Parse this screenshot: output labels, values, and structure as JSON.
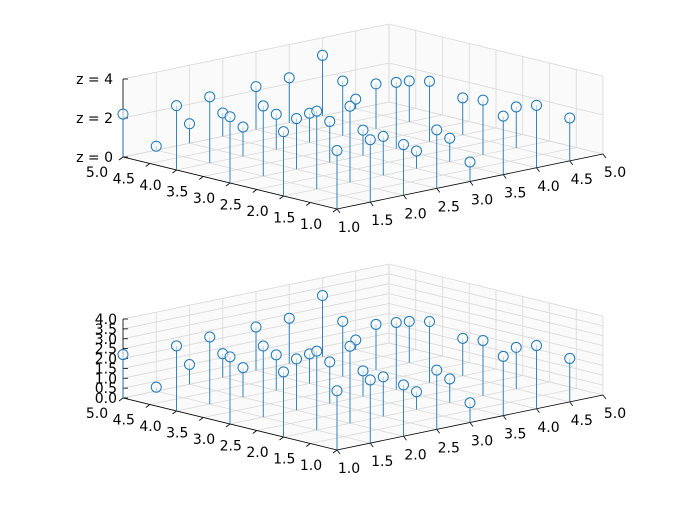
{
  "chart_data": [
    {
      "type": "stem3d",
      "title": "",
      "xlabel": "",
      "ylabel": "",
      "zlabel": "",
      "xlim": [
        1.0,
        5.0
      ],
      "ylim": [
        1.0,
        5.0
      ],
      "zlim": [
        0,
        4
      ],
      "xticks": [
        "1.0",
        "1.5",
        "2.0",
        "2.5",
        "3.0",
        "3.5",
        "4.0",
        "4.5",
        "5.0"
      ],
      "yticks": [
        "1.0",
        "1.5",
        "2.0",
        "2.5",
        "3.0",
        "3.5",
        "4.0",
        "4.5",
        "5.0"
      ],
      "zticks": [
        "z = 0",
        "z = 2",
        "z = 4"
      ],
      "zticks_values": [
        0,
        2,
        4
      ],
      "grid": true,
      "marker": "open-circle",
      "color": "#1f77b4",
      "points": [
        {
          "x": 1.0,
          "y": 5.0,
          "z": 2.2
        },
        {
          "x": 1.0,
          "y": 4.0,
          "z": 3.3
        },
        {
          "x": 1.0,
          "y": 3.0,
          "z": 3.4
        },
        {
          "x": 1.0,
          "y": 2.0,
          "z": 3.3
        },
        {
          "x": 1.0,
          "y": 1.0,
          "z": 3.0
        },
        {
          "x": 1.5,
          "y": 5.0,
          "z": 0.2
        },
        {
          "x": 1.5,
          "y": 4.0,
          "z": 3.4
        },
        {
          "x": 1.5,
          "y": 3.0,
          "z": 3.6
        },
        {
          "x": 1.5,
          "y": 2.0,
          "z": 4.0
        },
        {
          "x": 1.5,
          "y": 1.0,
          "z": 3.2
        },
        {
          "x": 2.0,
          "y": 5.0,
          "z": 1.0
        },
        {
          "x": 2.0,
          "y": 4.0,
          "z": 1.5
        },
        {
          "x": 2.0,
          "y": 3.0,
          "z": 2.6
        },
        {
          "x": 2.0,
          "y": 2.0,
          "z": 3.9
        },
        {
          "x": 2.0,
          "y": 1.0,
          "z": 2.6
        },
        {
          "x": 2.5,
          "y": 5.0,
          "z": 1.2
        },
        {
          "x": 2.5,
          "y": 4.0,
          "z": 1.8
        },
        {
          "x": 2.5,
          "y": 3.0,
          "z": 2.1
        },
        {
          "x": 2.5,
          "y": 2.0,
          "z": 2.0
        },
        {
          "x": 2.5,
          "y": 1.0,
          "z": 3.0
        },
        {
          "x": 3.0,
          "y": 5.0,
          "z": 2.2
        },
        {
          "x": 3.0,
          "y": 4.0,
          "z": 1.5
        },
        {
          "x": 3.0,
          "y": 3.0,
          "z": 1.3
        },
        {
          "x": 3.0,
          "y": 2.0,
          "z": 0.9
        },
        {
          "x": 3.0,
          "y": 1.0,
          "z": 1.0
        },
        {
          "x": 3.5,
          "y": 5.0,
          "z": 2.3
        },
        {
          "x": 3.5,
          "y": 4.0,
          "z": 2.8
        },
        {
          "x": 3.5,
          "y": 3.0,
          "z": 3.4
        },
        {
          "x": 3.5,
          "y": 2.0,
          "z": 1.2
        },
        {
          "x": 3.5,
          "y": 1.0,
          "z": 3.0
        },
        {
          "x": 4.0,
          "y": 5.0,
          "z": 3.1
        },
        {
          "x": 4.0,
          "y": 4.0,
          "z": 2.3
        },
        {
          "x": 4.0,
          "y": 3.0,
          "z": 3.1
        },
        {
          "x": 4.0,
          "y": 2.0,
          "z": 2.8
        },
        {
          "x": 4.0,
          "y": 1.0,
          "z": 3.2
        },
        {
          "x": 4.5,
          "y": 5.0,
          "z": 0.5
        },
        {
          "x": 4.5,
          "y": 4.0,
          "z": 2.1
        },
        {
          "x": 4.5,
          "y": 3.0,
          "z": 1.9
        },
        {
          "x": 4.5,
          "y": 2.0,
          "z": 2.1
        },
        {
          "x": 4.5,
          "y": 1.0,
          "z": 2.2
        }
      ]
    },
    {
      "type": "stem3d",
      "title": "",
      "xlabel": "",
      "ylabel": "",
      "zlabel": "",
      "xlim": [
        1.0,
        5.0
      ],
      "ylim": [
        1.0,
        5.0
      ],
      "zlim": [
        0,
        4
      ],
      "xticks": [
        "1.0",
        "1.5",
        "2.0",
        "2.5",
        "3.0",
        "3.5",
        "4.0",
        "4.5",
        "5.0"
      ],
      "yticks": [
        "1.0",
        "1.5",
        "2.0",
        "2.5",
        "3.0",
        "3.5",
        "4.0",
        "4.5",
        "5.0"
      ],
      "zticks": [
        "0.0",
        "0.5",
        "1.0",
        "1.5",
        "2.0",
        "2.5",
        "3.0",
        "3.5",
        "4.0"
      ],
      "zticks_values": [
        0,
        0.5,
        1,
        1.5,
        2,
        2.5,
        3,
        3.5,
        4
      ],
      "grid": true,
      "marker": "open-circle",
      "color": "#1f77b4",
      "points": [
        {
          "x": 1.0,
          "y": 5.0,
          "z": 2.2
        },
        {
          "x": 1.0,
          "y": 4.0,
          "z": 3.3
        },
        {
          "x": 1.0,
          "y": 3.0,
          "z": 3.4
        },
        {
          "x": 1.0,
          "y": 2.0,
          "z": 3.3
        },
        {
          "x": 1.0,
          "y": 1.0,
          "z": 3.0
        },
        {
          "x": 1.5,
          "y": 5.0,
          "z": 0.2
        },
        {
          "x": 1.5,
          "y": 4.0,
          "z": 3.4
        },
        {
          "x": 1.5,
          "y": 3.0,
          "z": 3.6
        },
        {
          "x": 1.5,
          "y": 2.0,
          "z": 4.0
        },
        {
          "x": 1.5,
          "y": 1.0,
          "z": 3.2
        },
        {
          "x": 2.0,
          "y": 5.0,
          "z": 1.0
        },
        {
          "x": 2.0,
          "y": 4.0,
          "z": 1.5
        },
        {
          "x": 2.0,
          "y": 3.0,
          "z": 2.6
        },
        {
          "x": 2.0,
          "y": 2.0,
          "z": 3.9
        },
        {
          "x": 2.0,
          "y": 1.0,
          "z": 2.6
        },
        {
          "x": 2.5,
          "y": 5.0,
          "z": 1.2
        },
        {
          "x": 2.5,
          "y": 4.0,
          "z": 1.8
        },
        {
          "x": 2.5,
          "y": 3.0,
          "z": 2.1
        },
        {
          "x": 2.5,
          "y": 2.0,
          "z": 2.0
        },
        {
          "x": 2.5,
          "y": 1.0,
          "z": 3.0
        },
        {
          "x": 3.0,
          "y": 5.0,
          "z": 2.2
        },
        {
          "x": 3.0,
          "y": 4.0,
          "z": 1.5
        },
        {
          "x": 3.0,
          "y": 3.0,
          "z": 1.3
        },
        {
          "x": 3.0,
          "y": 2.0,
          "z": 0.9
        },
        {
          "x": 3.0,
          "y": 1.0,
          "z": 1.0
        },
        {
          "x": 3.5,
          "y": 5.0,
          "z": 2.3
        },
        {
          "x": 3.5,
          "y": 4.0,
          "z": 2.8
        },
        {
          "x": 3.5,
          "y": 3.0,
          "z": 3.4
        },
        {
          "x": 3.5,
          "y": 2.0,
          "z": 1.2
        },
        {
          "x": 3.5,
          "y": 1.0,
          "z": 3.0
        },
        {
          "x": 4.0,
          "y": 5.0,
          "z": 3.1
        },
        {
          "x": 4.0,
          "y": 4.0,
          "z": 2.3
        },
        {
          "x": 4.0,
          "y": 3.0,
          "z": 3.1
        },
        {
          "x": 4.0,
          "y": 2.0,
          "z": 2.8
        },
        {
          "x": 4.0,
          "y": 1.0,
          "z": 3.2
        },
        {
          "x": 4.5,
          "y": 5.0,
          "z": 0.5
        },
        {
          "x": 4.5,
          "y": 4.0,
          "z": 2.1
        },
        {
          "x": 4.5,
          "y": 3.0,
          "z": 1.9
        },
        {
          "x": 4.5,
          "y": 2.0,
          "z": 2.1
        },
        {
          "x": 4.5,
          "y": 1.0,
          "z": 2.2
        }
      ]
    }
  ]
}
